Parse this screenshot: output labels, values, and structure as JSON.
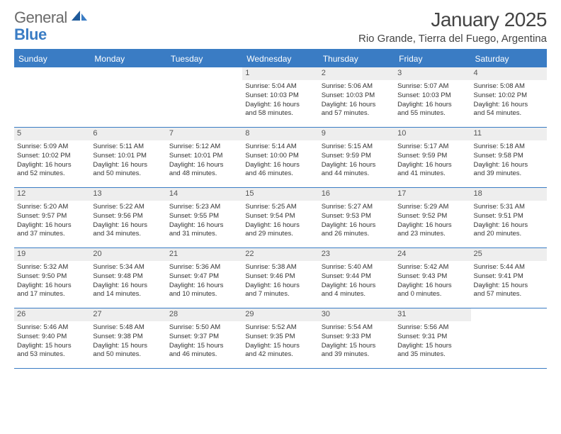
{
  "brand": {
    "part1": "General",
    "part2": "Blue"
  },
  "title": "January 2025",
  "location": "Rio Grande, Tierra del Fuego, Argentina",
  "colors": {
    "accent": "#3a7cc4",
    "header_text": "#ffffff",
    "daynum_bg": "#eeeeee",
    "body_text": "#333333",
    "title_text": "#444444",
    "logo_gray": "#6a6a6a"
  },
  "day_headers": [
    "Sunday",
    "Monday",
    "Tuesday",
    "Wednesday",
    "Thursday",
    "Friday",
    "Saturday"
  ],
  "weeks": [
    [
      {
        "num": "",
        "lines": []
      },
      {
        "num": "",
        "lines": []
      },
      {
        "num": "",
        "lines": []
      },
      {
        "num": "1",
        "lines": [
          "Sunrise: 5:04 AM",
          "Sunset: 10:03 PM",
          "Daylight: 16 hours",
          "and 58 minutes."
        ]
      },
      {
        "num": "2",
        "lines": [
          "Sunrise: 5:06 AM",
          "Sunset: 10:03 PM",
          "Daylight: 16 hours",
          "and 57 minutes."
        ]
      },
      {
        "num": "3",
        "lines": [
          "Sunrise: 5:07 AM",
          "Sunset: 10:03 PM",
          "Daylight: 16 hours",
          "and 55 minutes."
        ]
      },
      {
        "num": "4",
        "lines": [
          "Sunrise: 5:08 AM",
          "Sunset: 10:02 PM",
          "Daylight: 16 hours",
          "and 54 minutes."
        ]
      }
    ],
    [
      {
        "num": "5",
        "lines": [
          "Sunrise: 5:09 AM",
          "Sunset: 10:02 PM",
          "Daylight: 16 hours",
          "and 52 minutes."
        ]
      },
      {
        "num": "6",
        "lines": [
          "Sunrise: 5:11 AM",
          "Sunset: 10:01 PM",
          "Daylight: 16 hours",
          "and 50 minutes."
        ]
      },
      {
        "num": "7",
        "lines": [
          "Sunrise: 5:12 AM",
          "Sunset: 10:01 PM",
          "Daylight: 16 hours",
          "and 48 minutes."
        ]
      },
      {
        "num": "8",
        "lines": [
          "Sunrise: 5:14 AM",
          "Sunset: 10:00 PM",
          "Daylight: 16 hours",
          "and 46 minutes."
        ]
      },
      {
        "num": "9",
        "lines": [
          "Sunrise: 5:15 AM",
          "Sunset: 9:59 PM",
          "Daylight: 16 hours",
          "and 44 minutes."
        ]
      },
      {
        "num": "10",
        "lines": [
          "Sunrise: 5:17 AM",
          "Sunset: 9:59 PM",
          "Daylight: 16 hours",
          "and 41 minutes."
        ]
      },
      {
        "num": "11",
        "lines": [
          "Sunrise: 5:18 AM",
          "Sunset: 9:58 PM",
          "Daylight: 16 hours",
          "and 39 minutes."
        ]
      }
    ],
    [
      {
        "num": "12",
        "lines": [
          "Sunrise: 5:20 AM",
          "Sunset: 9:57 PM",
          "Daylight: 16 hours",
          "and 37 minutes."
        ]
      },
      {
        "num": "13",
        "lines": [
          "Sunrise: 5:22 AM",
          "Sunset: 9:56 PM",
          "Daylight: 16 hours",
          "and 34 minutes."
        ]
      },
      {
        "num": "14",
        "lines": [
          "Sunrise: 5:23 AM",
          "Sunset: 9:55 PM",
          "Daylight: 16 hours",
          "and 31 minutes."
        ]
      },
      {
        "num": "15",
        "lines": [
          "Sunrise: 5:25 AM",
          "Sunset: 9:54 PM",
          "Daylight: 16 hours",
          "and 29 minutes."
        ]
      },
      {
        "num": "16",
        "lines": [
          "Sunrise: 5:27 AM",
          "Sunset: 9:53 PM",
          "Daylight: 16 hours",
          "and 26 minutes."
        ]
      },
      {
        "num": "17",
        "lines": [
          "Sunrise: 5:29 AM",
          "Sunset: 9:52 PM",
          "Daylight: 16 hours",
          "and 23 minutes."
        ]
      },
      {
        "num": "18",
        "lines": [
          "Sunrise: 5:31 AM",
          "Sunset: 9:51 PM",
          "Daylight: 16 hours",
          "and 20 minutes."
        ]
      }
    ],
    [
      {
        "num": "19",
        "lines": [
          "Sunrise: 5:32 AM",
          "Sunset: 9:50 PM",
          "Daylight: 16 hours",
          "and 17 minutes."
        ]
      },
      {
        "num": "20",
        "lines": [
          "Sunrise: 5:34 AM",
          "Sunset: 9:48 PM",
          "Daylight: 16 hours",
          "and 14 minutes."
        ]
      },
      {
        "num": "21",
        "lines": [
          "Sunrise: 5:36 AM",
          "Sunset: 9:47 PM",
          "Daylight: 16 hours",
          "and 10 minutes."
        ]
      },
      {
        "num": "22",
        "lines": [
          "Sunrise: 5:38 AM",
          "Sunset: 9:46 PM",
          "Daylight: 16 hours",
          "and 7 minutes."
        ]
      },
      {
        "num": "23",
        "lines": [
          "Sunrise: 5:40 AM",
          "Sunset: 9:44 PM",
          "Daylight: 16 hours",
          "and 4 minutes."
        ]
      },
      {
        "num": "24",
        "lines": [
          "Sunrise: 5:42 AM",
          "Sunset: 9:43 PM",
          "Daylight: 16 hours",
          "and 0 minutes."
        ]
      },
      {
        "num": "25",
        "lines": [
          "Sunrise: 5:44 AM",
          "Sunset: 9:41 PM",
          "Daylight: 15 hours",
          "and 57 minutes."
        ]
      }
    ],
    [
      {
        "num": "26",
        "lines": [
          "Sunrise: 5:46 AM",
          "Sunset: 9:40 PM",
          "Daylight: 15 hours",
          "and 53 minutes."
        ]
      },
      {
        "num": "27",
        "lines": [
          "Sunrise: 5:48 AM",
          "Sunset: 9:38 PM",
          "Daylight: 15 hours",
          "and 50 minutes."
        ]
      },
      {
        "num": "28",
        "lines": [
          "Sunrise: 5:50 AM",
          "Sunset: 9:37 PM",
          "Daylight: 15 hours",
          "and 46 minutes."
        ]
      },
      {
        "num": "29",
        "lines": [
          "Sunrise: 5:52 AM",
          "Sunset: 9:35 PM",
          "Daylight: 15 hours",
          "and 42 minutes."
        ]
      },
      {
        "num": "30",
        "lines": [
          "Sunrise: 5:54 AM",
          "Sunset: 9:33 PM",
          "Daylight: 15 hours",
          "and 39 minutes."
        ]
      },
      {
        "num": "31",
        "lines": [
          "Sunrise: 5:56 AM",
          "Sunset: 9:31 PM",
          "Daylight: 15 hours",
          "and 35 minutes."
        ]
      },
      {
        "num": "",
        "lines": []
      }
    ]
  ]
}
